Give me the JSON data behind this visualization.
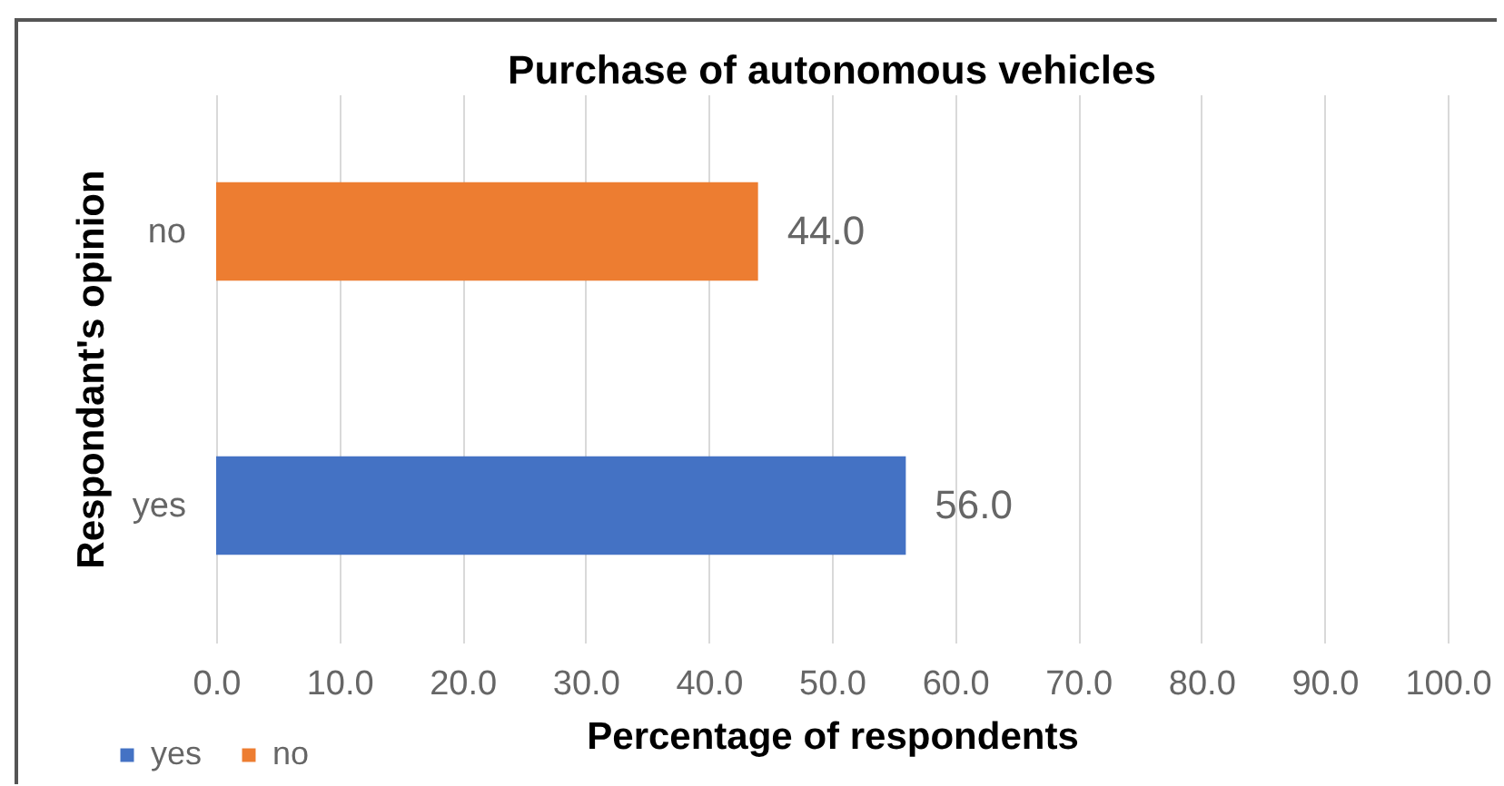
{
  "chart_data": {
    "type": "bar",
    "orientation": "horizontal",
    "title": "Purchase of autonomous vehicles",
    "xlabel": "Percentage of respondents",
    "ylabel": "Respondant's opinion",
    "categories": [
      "no",
      "yes"
    ],
    "series": [
      {
        "name": "yes",
        "color": "#4472c4",
        "values": [
          null,
          56
        ],
        "value_labels": [
          null,
          "56.0"
        ]
      },
      {
        "name": "no",
        "color": "#ed7d31",
        "values": [
          44,
          null
        ],
        "value_labels": [
          "44.0",
          null
        ]
      }
    ],
    "xlim": [
      0,
      100
    ],
    "xticks": [
      {
        "value": 0,
        "label": "0.0"
      },
      {
        "value": 10,
        "label": "10.0"
      },
      {
        "value": 20,
        "label": "20.0"
      },
      {
        "value": 30,
        "label": "30.0"
      },
      {
        "value": 40,
        "label": "40.0"
      },
      {
        "value": 50,
        "label": "50.0"
      },
      {
        "value": 60,
        "label": "60.0"
      },
      {
        "value": 70,
        "label": "70.0"
      },
      {
        "value": 80,
        "label": "80.0"
      },
      {
        "value": 90,
        "label": "90.0"
      },
      {
        "value": 100,
        "label": "100.0"
      }
    ],
    "grid": "x",
    "legend": "bottom left"
  }
}
